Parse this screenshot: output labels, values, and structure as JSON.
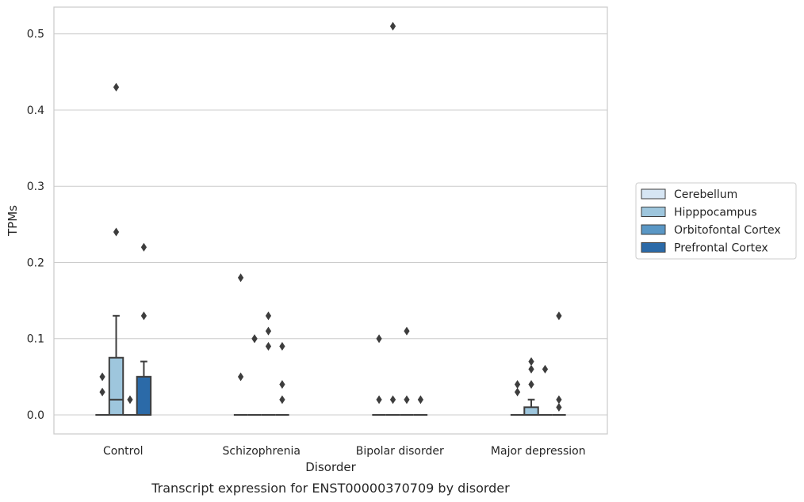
{
  "chart_data": {
    "type": "box",
    "title": "",
    "caption": "Transcript expression for ENST00000370709 by disorder",
    "xlabel": "Disorder",
    "ylabel": "TPMs",
    "ylim": [
      -0.025,
      0.535
    ],
    "yticks": [
      0.0,
      0.1,
      0.2,
      0.3,
      0.4,
      0.5
    ],
    "ytick_labels": [
      "0.0",
      "0.1",
      "0.2",
      "0.3",
      "0.4",
      "0.5"
    ],
    "grid": "horizontal",
    "legend_position": "right",
    "categories": [
      "Control",
      "Schizophrenia",
      "Bipolar disorder",
      "Major depression"
    ],
    "series": [
      {
        "name": "Cerebellum",
        "color": "#d6e5f3",
        "boxes": [
          {
            "q1": 0,
            "median": 0,
            "q3": 0,
            "whisker_low": 0,
            "whisker_high": 0,
            "outliers": [
              0.05,
              0.03
            ]
          },
          {
            "q1": 0,
            "median": 0,
            "q3": 0,
            "whisker_low": 0,
            "whisker_high": 0,
            "outliers": [
              0.18,
              0.05
            ]
          },
          {
            "q1": 0,
            "median": 0,
            "q3": 0,
            "whisker_low": 0,
            "whisker_high": 0,
            "outliers": [
              0.1,
              0.02
            ]
          },
          {
            "q1": 0,
            "median": 0,
            "q3": 0,
            "whisker_low": 0,
            "whisker_high": 0,
            "outliers": [
              0.04,
              0.03
            ]
          }
        ]
      },
      {
        "name": "Hipppocampus",
        "color": "#9ec6dd",
        "boxes": [
          {
            "q1": 0,
            "median": 0.02,
            "q3": 0.075,
            "whisker_low": 0,
            "whisker_high": 0.13,
            "outliers": [
              0.24,
              0.43
            ]
          },
          {
            "q1": 0,
            "median": 0,
            "q3": 0,
            "whisker_low": 0,
            "whisker_high": 0,
            "outliers": [
              0.1,
              0.1
            ]
          },
          {
            "q1": 0,
            "median": 0,
            "q3": 0,
            "whisker_low": 0,
            "whisker_high": 0,
            "outliers": [
              0.51,
              0.02
            ]
          },
          {
            "q1": 0,
            "median": 0,
            "q3": 0.01,
            "whisker_low": 0,
            "whisker_high": 0.02,
            "outliers": [
              0.07,
              0.06,
              0.04
            ]
          }
        ]
      },
      {
        "name": "Orbitofontal Cortex",
        "color": "#5a97c5",
        "boxes": [
          {
            "q1": 0,
            "median": 0,
            "q3": 0,
            "whisker_low": 0,
            "whisker_high": 0,
            "outliers": [
              0.02
            ]
          },
          {
            "q1": 0,
            "median": 0,
            "q3": 0,
            "whisker_low": 0,
            "whisker_high": 0,
            "outliers": [
              0.13,
              0.11,
              0.09
            ]
          },
          {
            "q1": 0,
            "median": 0,
            "q3": 0,
            "whisker_low": 0,
            "whisker_high": 0,
            "outliers": [
              0.11,
              0.02
            ]
          },
          {
            "q1": 0,
            "median": 0,
            "q3": 0,
            "whisker_low": 0,
            "whisker_high": 0,
            "outliers": [
              0.06
            ]
          }
        ]
      },
      {
        "name": "Prefrontal Cortex",
        "color": "#2b6aa8",
        "boxes": [
          {
            "q1": 0,
            "median": 0,
            "q3": 0.05,
            "whisker_low": 0,
            "whisker_high": 0.07,
            "outliers": [
              0.22,
              0.13
            ]
          },
          {
            "q1": 0,
            "median": 0,
            "q3": 0,
            "whisker_low": 0,
            "whisker_high": 0,
            "outliers": [
              0.09,
              0.04,
              0.02
            ]
          },
          {
            "q1": 0,
            "median": 0,
            "q3": 0,
            "whisker_low": 0,
            "whisker_high": 0,
            "outliers": [
              0.02
            ]
          },
          {
            "q1": 0,
            "median": 0,
            "q3": 0,
            "whisker_low": 0,
            "whisker_high": 0,
            "outliers": [
              0.13,
              0.02,
              0.01
            ]
          }
        ]
      }
    ]
  }
}
